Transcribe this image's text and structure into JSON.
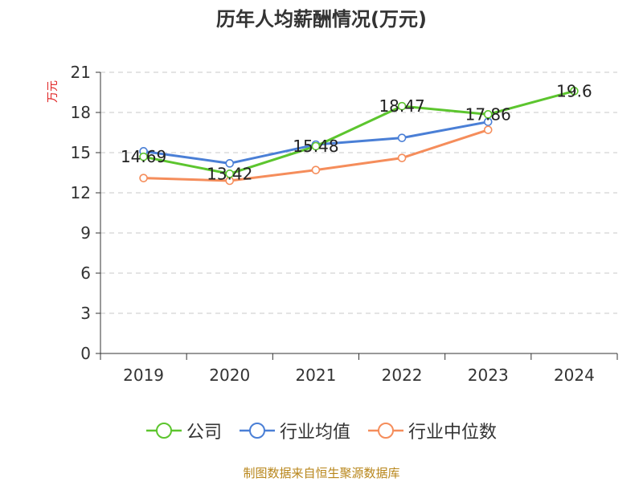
{
  "chart_data": {
    "type": "line",
    "title": "历年人均薪酬情况(万元)",
    "ylabel": "万元",
    "xlabel": "",
    "categories": [
      "2019",
      "2020",
      "2021",
      "2022",
      "2023",
      "2024"
    ],
    "ylim": [
      0,
      21
    ],
    "yticks": [
      0,
      3,
      6,
      9,
      12,
      15,
      18,
      21
    ],
    "grid": true,
    "legend_position": "bottom",
    "series": [
      {
        "name": "公司",
        "color": "#5cc52e",
        "values": [
          14.69,
          13.42,
          15.48,
          18.47,
          17.86,
          19.6
        ],
        "labels": [
          "14.69",
          "13.42",
          "15.48",
          "18.47",
          "17.86",
          "19.6"
        ]
      },
      {
        "name": "行业均值",
        "color": "#4a7fd6",
        "values": [
          15.1,
          14.2,
          15.6,
          16.1,
          17.3,
          null
        ]
      },
      {
        "name": "行业中位数",
        "color": "#f58d5b",
        "values": [
          13.1,
          12.9,
          13.7,
          14.6,
          16.7,
          null
        ]
      }
    ]
  },
  "source": "制图数据来自恒生聚源数据库"
}
